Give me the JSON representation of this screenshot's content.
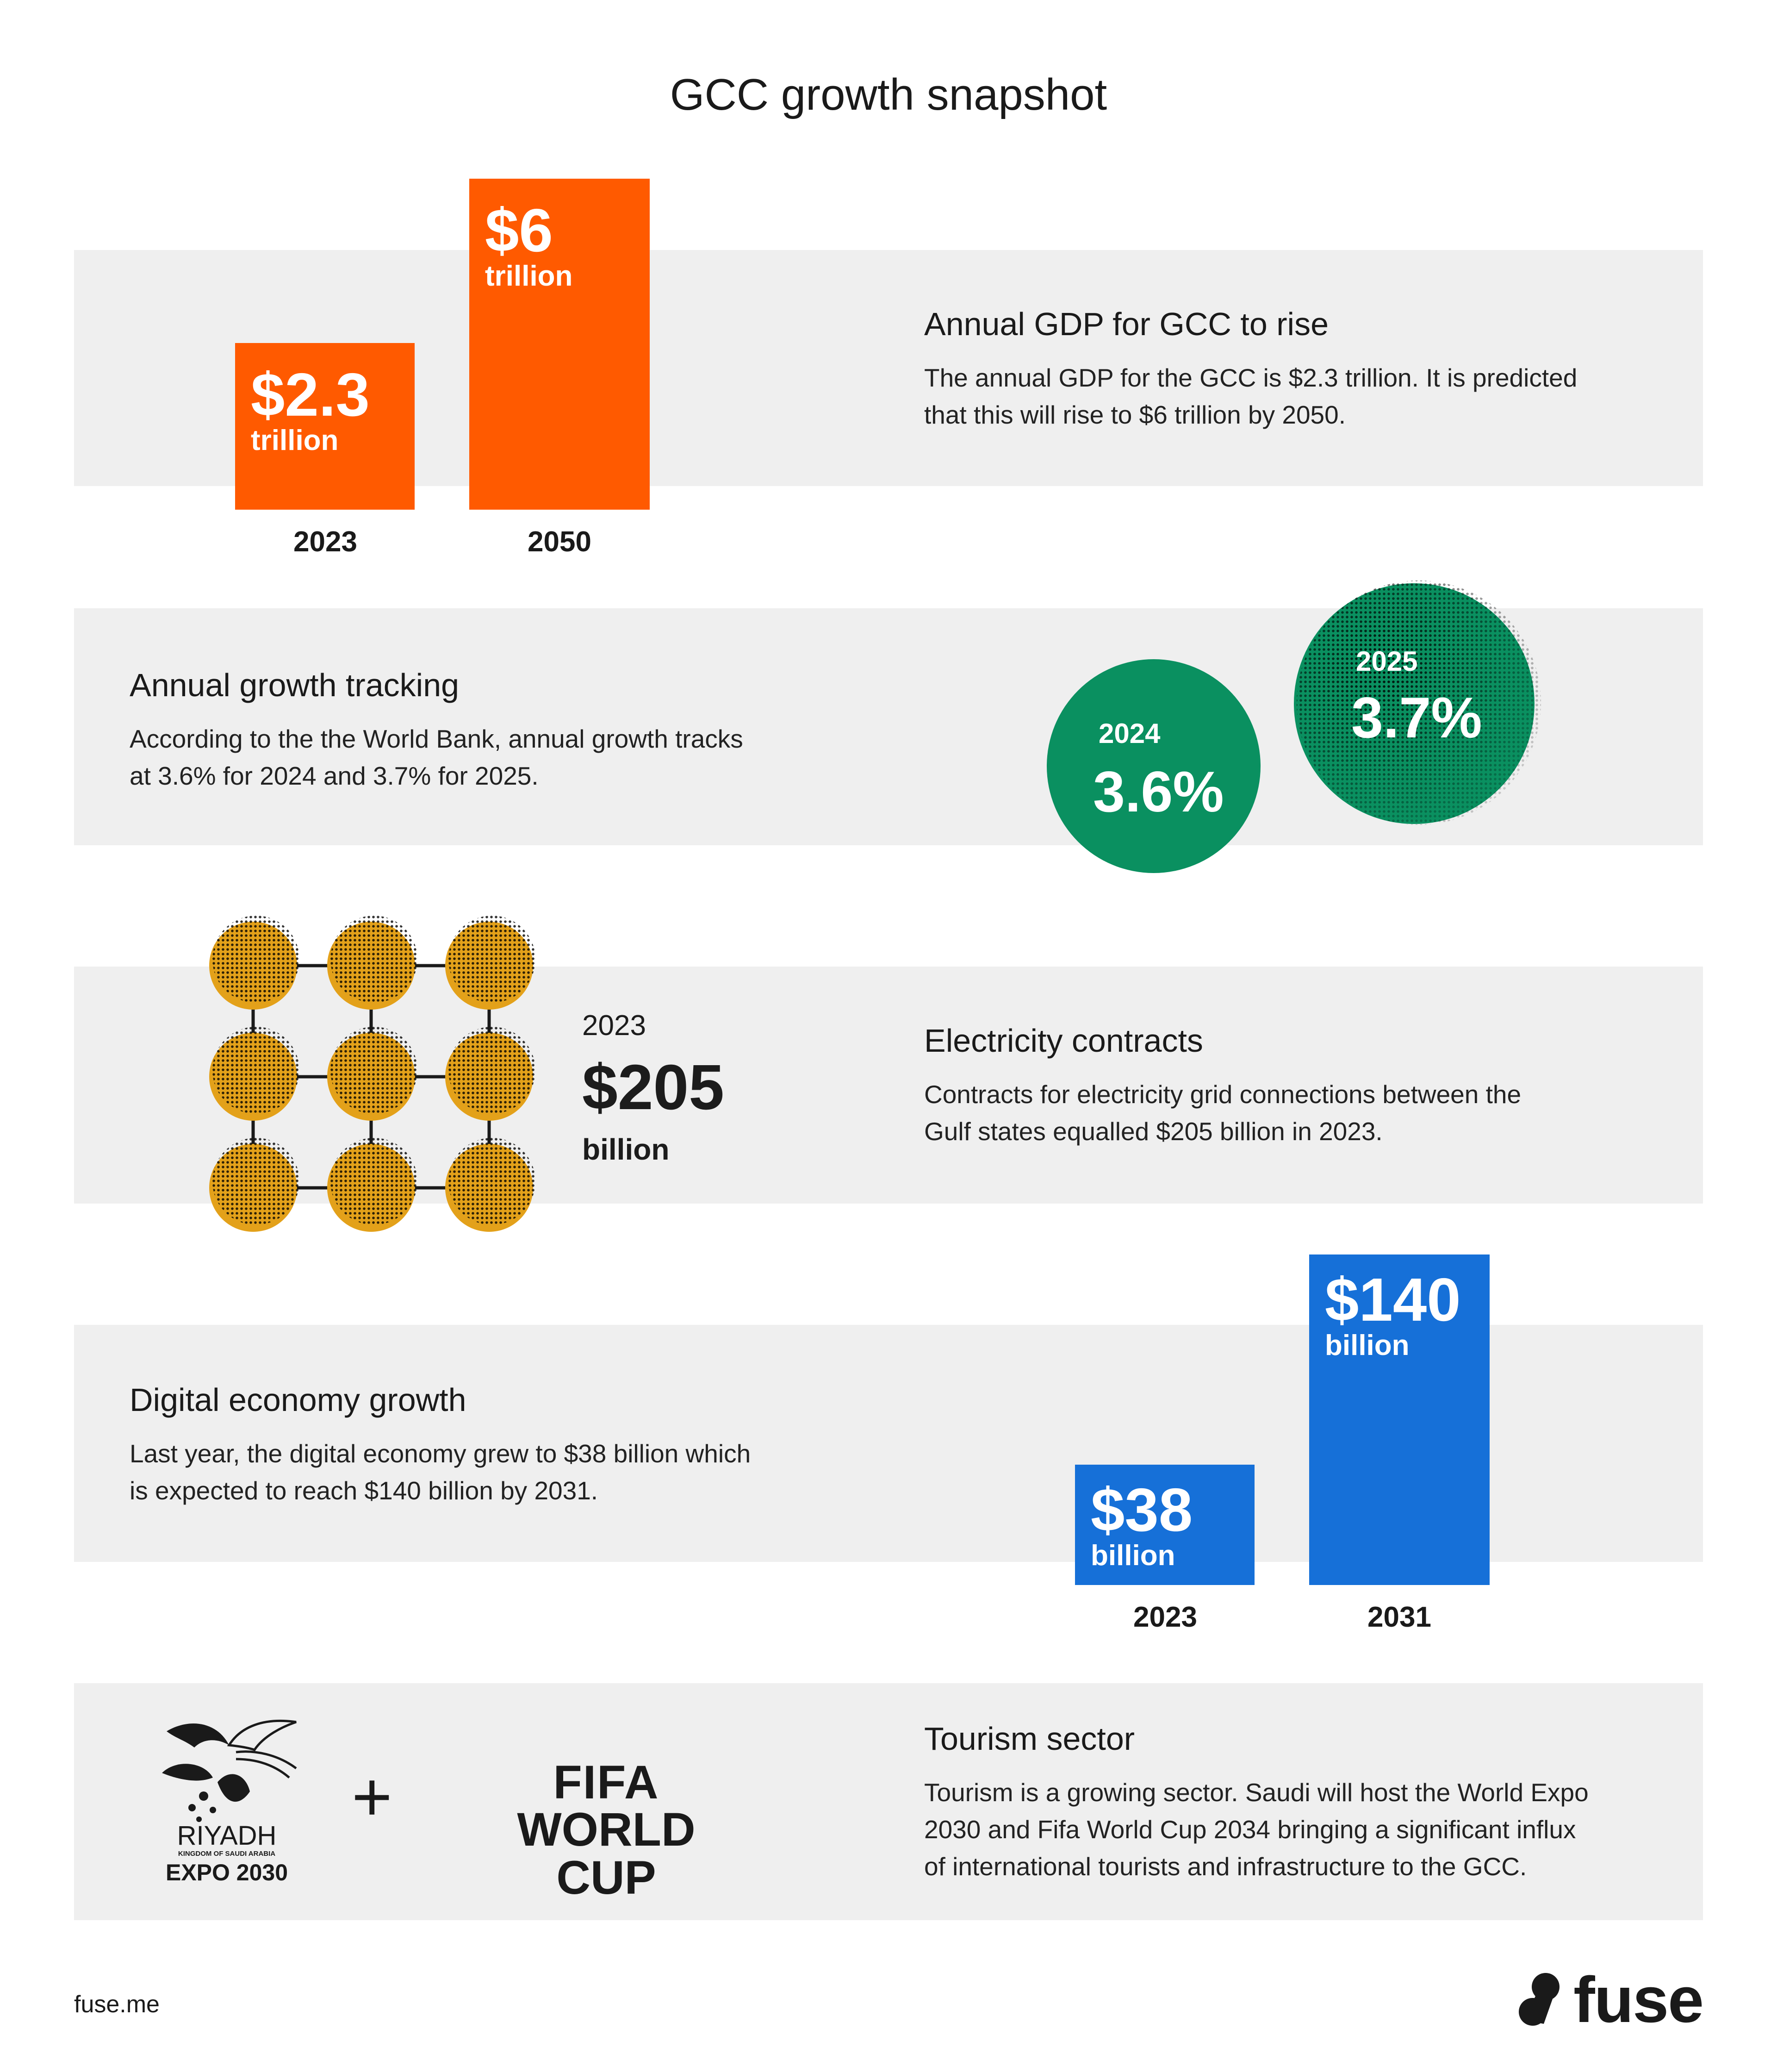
{
  "page": {
    "title": "GCC growth snapshot"
  },
  "colors": {
    "orange": "#ff5a00",
    "green": "#0a9060",
    "gold": "#e3a11a",
    "blue": "#1670d8",
    "band": "#efefef"
  },
  "gdp": {
    "heading": "Annual GDP for GCC to rise",
    "body_1": "The annual GDP for the GCC is $2.3 trillion. It is predicted",
    "body_2": "that this will rise to $6 trillion by 2050.",
    "bars": [
      {
        "label": "$2.3",
        "unit": "trillion",
        "year": "2023"
      },
      {
        "label": "$6",
        "unit": "trillion",
        "year": "2050"
      }
    ]
  },
  "growth": {
    "heading": "Annual growth tracking",
    "body_1": "According to the the World Bank, annual growth tracks",
    "body_2": "at 3.6% for 2024 and 3.7% for 2025.",
    "circles": [
      {
        "year": "2024",
        "value": "3.6%"
      },
      {
        "year": "2025",
        "value": "3.7%"
      }
    ]
  },
  "electricity": {
    "heading": "Electricity contracts",
    "body_1": "Contracts for electricity grid connections between the",
    "body_2": "Gulf states equalled $205 billion in 2023.",
    "year": "2023",
    "value": "$205",
    "unit": "billion",
    "grid_icon": "interconnected-grid-icon"
  },
  "digital": {
    "heading": "Digital economy growth",
    "body_1": "Last year, the digital economy grew to $38 billion which",
    "body_2": "is expected to reach $140 billion by 2031.",
    "bars": [
      {
        "label": "$38",
        "unit": "billion",
        "year": "2023"
      },
      {
        "label": "$140",
        "unit": "billion",
        "year": "2031"
      }
    ]
  },
  "tourism": {
    "heading": "Tourism sector",
    "body_1": "Tourism is a growing sector. Saudi will host the World Expo",
    "body_2": "2030 and Fifa World Cup 2034 bringing a significant influx",
    "body_3": "of international tourists and infrastructure to the GCC.",
    "expo_line1": "RIYADH",
    "expo_line2": "KINGDOM OF SAUDI ARABIA",
    "expo_line3": "EXPO 2030",
    "plus": "+",
    "fifa_line1": "FIFA",
    "fifa_line2": "WORLD CUP"
  },
  "footer": {
    "url": "fuse.me",
    "brand": "fuse"
  },
  "chart_data": [
    {
      "type": "bar",
      "title": "Annual GDP for GCC to rise",
      "categories": [
        "2023",
        "2050"
      ],
      "values": [
        2.3,
        6
      ],
      "unit": "trillion"
    },
    {
      "type": "bar",
      "title": "Annual growth tracking",
      "categories": [
        "2024",
        "2025"
      ],
      "values": [
        3.6,
        3.7
      ],
      "unit": "%"
    },
    {
      "type": "bar",
      "title": "Digital economy growth",
      "categories": [
        "2023",
        "2031"
      ],
      "values": [
        38,
        140
      ],
      "unit": "billion"
    }
  ]
}
